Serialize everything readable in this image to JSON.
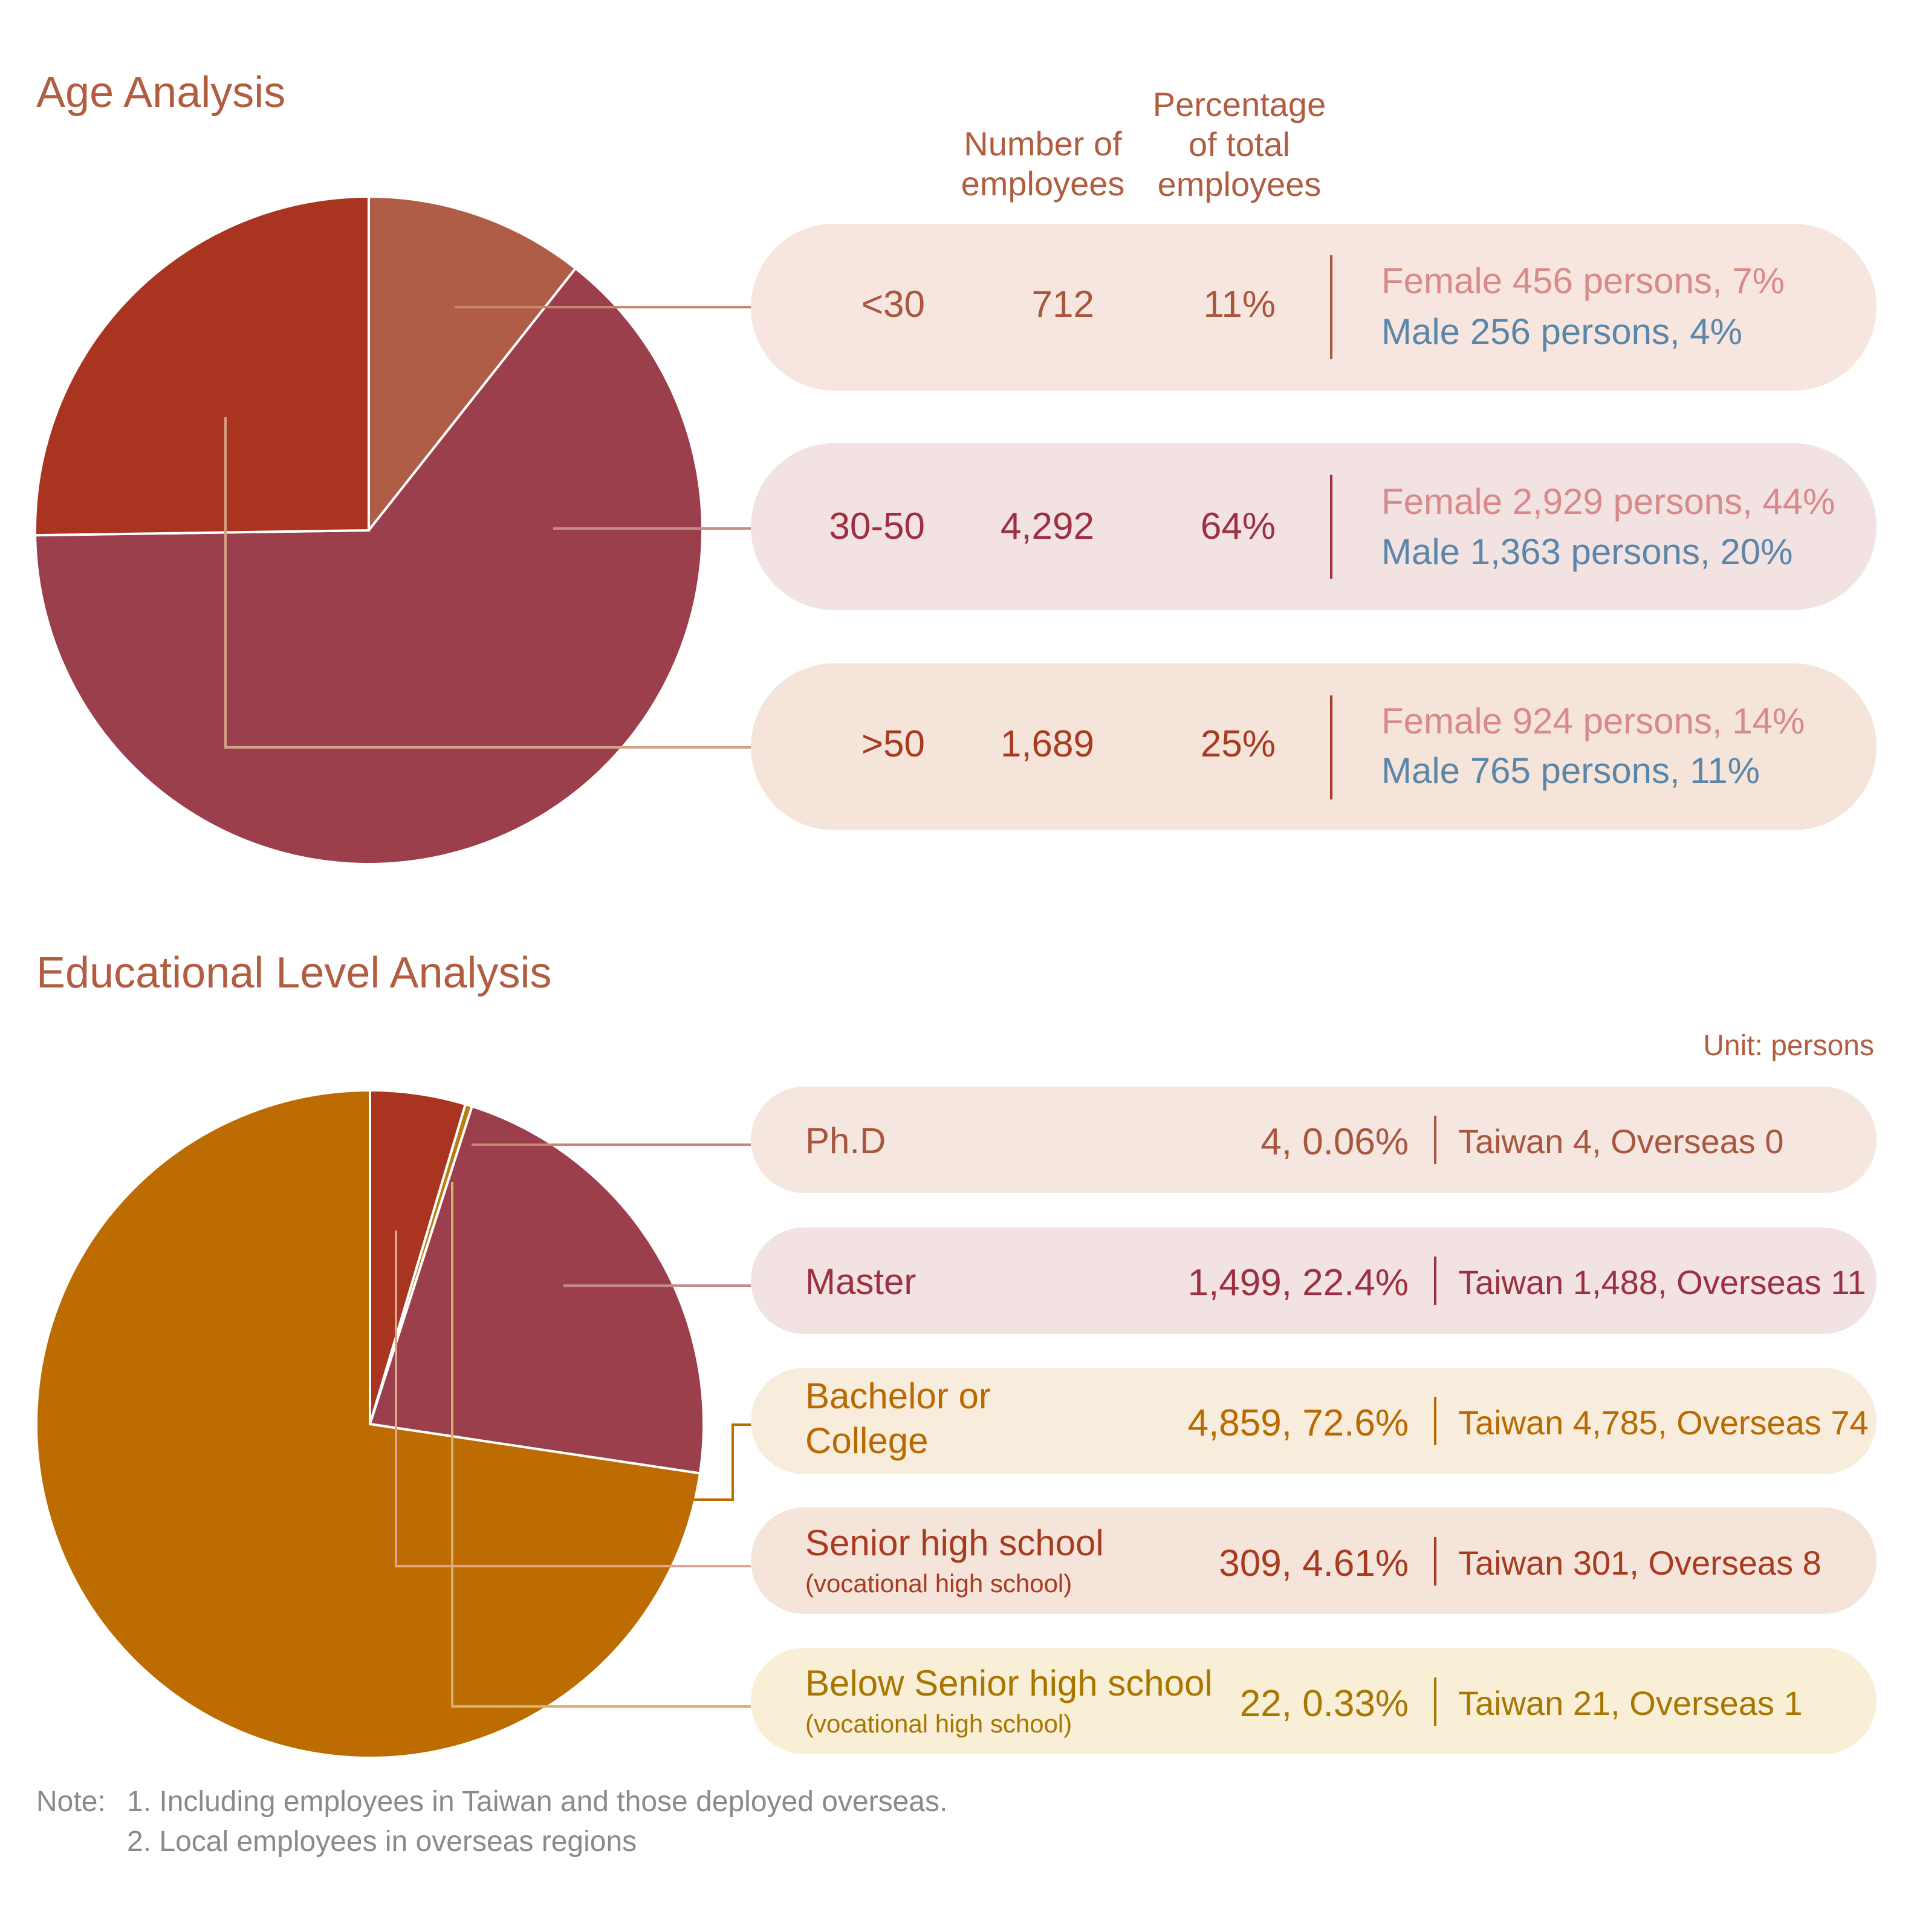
{
  "age_section": {
    "title": "Age Analysis"
  },
  "edu_section": {
    "title": "Educational Level Analysis",
    "unit": "Unit: persons"
  },
  "headers": {
    "number": [
      "Number of",
      "employees"
    ],
    "percent": [
      "Percentage",
      "of total",
      "employees"
    ]
  },
  "age_rows": [
    {
      "label": "<30",
      "count": "712",
      "pct": "11%",
      "female": "Female 456 persons, 7%",
      "male": "Male 256 persons, 4%",
      "color": "#b05d48",
      "pill_color": "#f6e6df",
      "text_color": "#a8563e"
    },
    {
      "label": "30-50",
      "count": "4,292",
      "pct": "64%",
      "female": "Female 2,929 persons, 44%",
      "male": "Male 1,363 persons, 20%",
      "color": "#9c3f4d",
      "pill_color": "#f2e2e2",
      "text_color": "#9c3040"
    },
    {
      "label": ">50",
      "count": "1,689",
      "pct": "25%",
      "female": "Female 924 persons, 14%",
      "male": "Male 765 persons, 11%",
      "color": "#a9341f",
      "pill_color": "#f5e4d9",
      "text_color": "#a83a20"
    }
  ],
  "edu_rows": [
    {
      "name": "Ph.D",
      "sub": "",
      "value": "4, 0.06%",
      "split": "Taiwan 4, Overseas 0",
      "color": "#b06a3c",
      "pill_color": "#f5e6df",
      "text_color": "#a8563e"
    },
    {
      "name": "Master",
      "sub": "",
      "value": "1,499, 22.4%",
      "split": "Taiwan 1,488, Overseas 11",
      "color": "#9c3f4d",
      "pill_color": "#f2e2e2",
      "text_color": "#9c3040"
    },
    {
      "name": "Bachelor or\nCollege",
      "sub": "",
      "value": "4,859, 72.6%",
      "split": "Taiwan 4,785, Overseas 74",
      "color": "#bc6c00",
      "pill_color": "#f8ecdc",
      "text_color": "#b86a00"
    },
    {
      "name": "Senior high school",
      "sub": "(vocational high school)",
      "value": "309, 4.61%",
      "split": "Taiwan 301, Overseas 8",
      "color": "#a9341f",
      "pill_color": "#f5e4d9",
      "text_color": "#a83a20"
    },
    {
      "name": "Below Senior high school",
      "sub": "(vocational high school)",
      "value": "22, 0.33%",
      "split": "Taiwan 21, Overseas 1",
      "color": "#b67d12",
      "pill_color": "#f8efd6",
      "text_color": "#a87600"
    }
  ],
  "notes": {
    "prefix": "Note:",
    "line1": "1. Including employees in Taiwan and those deployed overseas.",
    "line2": "2. Local employees in overseas regions"
  },
  "chart_data": [
    {
      "type": "pie",
      "title": "Age Analysis",
      "categories": [
        "<30",
        "30-50",
        ">50"
      ],
      "values": [
        712,
        4292,
        1689
      ],
      "percentages": [
        11,
        64,
        25
      ],
      "colors": [
        "#b05d48",
        "#9c3f4d",
        "#a9341f"
      ]
    },
    {
      "type": "pie",
      "title": "Educational Level Analysis",
      "categories": [
        "Ph.D",
        "Master",
        "Bachelor or College",
        "Senior high school",
        "Below Senior high school"
      ],
      "values": [
        4,
        1499,
        4859,
        309,
        22
      ],
      "percentages": [
        0.06,
        22.4,
        72.6,
        4.61,
        0.33
      ],
      "colors": [
        "#b06a3c",
        "#9c3f4d",
        "#bc6c00",
        "#a9341f",
        "#b67d12"
      ],
      "pie_order": [
        "Senior high school",
        "Below Senior high school",
        "Master",
        "Bachelor or College"
      ]
    }
  ]
}
